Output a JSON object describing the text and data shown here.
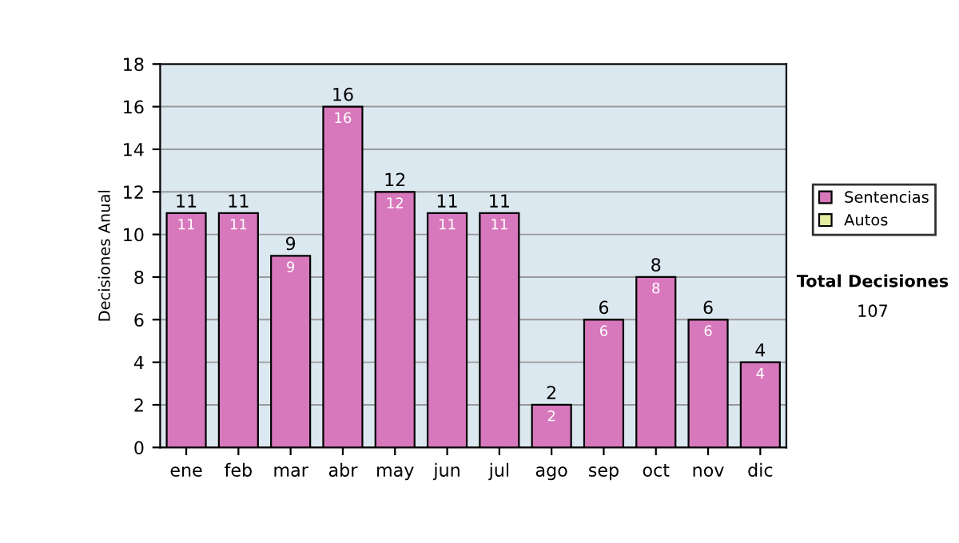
{
  "chart_data": {
    "type": "bar",
    "ylabel": "Decisiones Anual",
    "categories": [
      "ene",
      "feb",
      "mar",
      "abr",
      "may",
      "jun",
      "jul",
      "ago",
      "sep",
      "oct",
      "nov",
      "dic"
    ],
    "series": [
      {
        "name": "Sentencias",
        "color": "#d878bc",
        "values": [
          11,
          11,
          9,
          16,
          12,
          11,
          11,
          2,
          6,
          8,
          6,
          4
        ]
      },
      {
        "name": "Autos",
        "color": "#e4eca0",
        "values": [
          null,
          null,
          null,
          null,
          null,
          null,
          null,
          null,
          null,
          null,
          null,
          null
        ]
      }
    ],
    "stacked": true,
    "data_labels": true,
    "totals": [
      "11",
      "11",
      "9",
      "16",
      "12",
      "11",
      "11",
      "2",
      "6",
      "8",
      "6",
      "4"
    ],
    "ylim": [
      0,
      18
    ],
    "yticks": [
      0,
      2,
      4,
      6,
      8,
      10,
      12,
      14,
      16,
      18
    ],
    "grid": "y",
    "legend": "right",
    "annotations": [
      "Total Decisiones",
      "107"
    ]
  }
}
